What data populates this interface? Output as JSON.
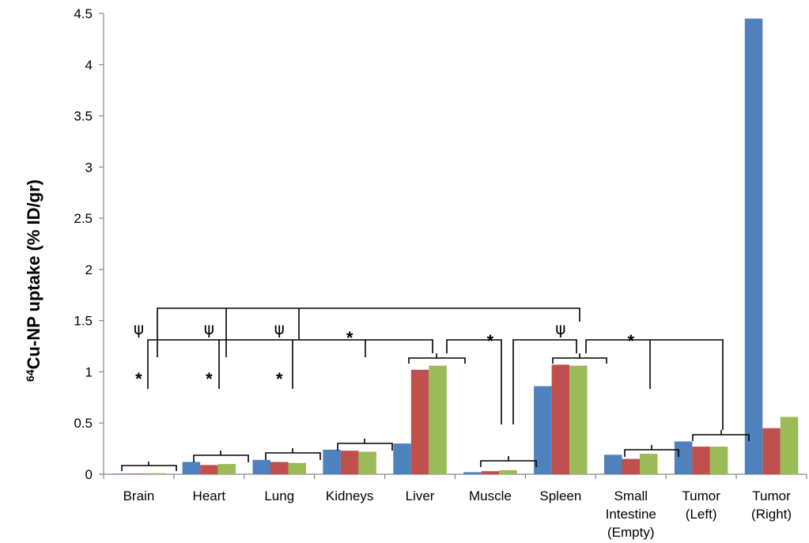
{
  "chart_data": {
    "type": "bar",
    "ylabel_sup": "64",
    "ylabel_main": "Cu-NP uptake (% ID/gr)",
    "ylim": [
      0,
      4.5
    ],
    "yticks": [
      "0",
      "0.5",
      "1",
      "1.5",
      "2",
      "2.5",
      "3",
      "3.5",
      "4",
      "4.5"
    ],
    "grid": false,
    "categories": [
      [
        "Brain"
      ],
      [
        "Heart"
      ],
      [
        "Lung"
      ],
      [
        "Kidneys"
      ],
      [
        "Liver"
      ],
      [
        "Muscle"
      ],
      [
        "Spleen"
      ],
      [
        "Small",
        "Intestine",
        "(Empty)"
      ],
      [
        "Tumor",
        "(Left)"
      ],
      [
        "Tumor",
        "(Right)"
      ]
    ],
    "series": [
      {
        "color": "#4F81BD",
        "values": [
          0.0,
          0.12,
          0.14,
          0.24,
          0.3,
          0.02,
          0.86,
          0.19,
          0.32,
          4.45
        ]
      },
      {
        "color": "#C0504D",
        "values": [
          0.0,
          0.09,
          0.12,
          0.23,
          1.02,
          0.03,
          1.07,
          0.15,
          0.27,
          0.45
        ]
      },
      {
        "color": "#9BBB59",
        "values": [
          0.01,
          0.1,
          0.11,
          0.22,
          1.06,
          0.04,
          1.06,
          0.2,
          0.27,
          0.56
        ]
      }
    ],
    "annotations": [
      {
        "text": "*",
        "cat": 0,
        "y": 0.98
      },
      {
        "text": "*",
        "cat": 1,
        "y": 0.98
      },
      {
        "text": "*",
        "cat": 2,
        "y": 0.98
      },
      {
        "text": "ψ",
        "cat": 0,
        "y": 1.43
      },
      {
        "text": "ψ",
        "cat": 1,
        "y": 1.43
      },
      {
        "text": "ψ",
        "cat": 2,
        "y": 1.43
      },
      {
        "text": "*",
        "cat": 3,
        "y": 1.38
      },
      {
        "text": "*",
        "cat": 5,
        "y": 1.35
      },
      {
        "text": "ψ",
        "cat": 6,
        "y": 1.43
      },
      {
        "text": "*",
        "cat": 7,
        "y": 1.35
      }
    ]
  }
}
